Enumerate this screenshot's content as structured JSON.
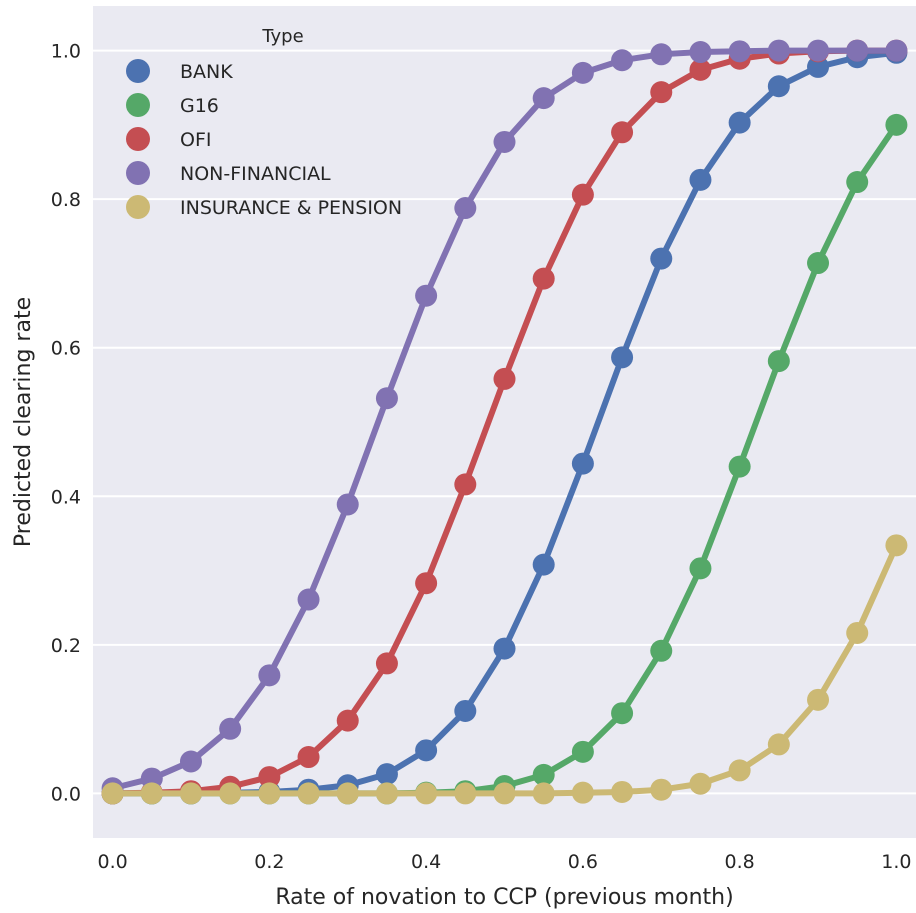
{
  "chart_data": {
    "type": "line",
    "xlabel": "Rate of novation to CCP (previous month)",
    "ylabel": "Predicted clearing rate",
    "xlim": [
      -0.025,
      1.025
    ],
    "ylim": [
      -0.06,
      1.06
    ],
    "x_ticks": [
      0.0,
      0.2,
      0.4,
      0.6,
      0.8,
      1.0
    ],
    "x_tick_labels": [
      "0.0",
      "0.2",
      "0.4",
      "0.6",
      "0.8",
      "1.0"
    ],
    "y_ticks": [
      0.0,
      0.2,
      0.4,
      0.6,
      0.8,
      1.0
    ],
    "y_tick_labels": [
      "0.0",
      "0.2",
      "0.4",
      "0.6",
      "0.8",
      "1.0"
    ],
    "grid": true,
    "background": "#eaeaf2",
    "legend": {
      "title": "Type",
      "placement": "top-left"
    },
    "x": [
      0.0,
      0.05,
      0.1,
      0.15,
      0.2,
      0.25,
      0.3,
      0.35,
      0.4,
      0.45,
      0.5,
      0.55,
      0.6,
      0.65,
      0.7,
      0.75,
      0.8,
      0.85,
      0.9,
      0.95,
      1.0
    ],
    "series": [
      {
        "name": "BANK",
        "color": "#4c72b0",
        "values": [
          0.0,
          0.0,
          0.0,
          0.001,
          0.002,
          0.005,
          0.011,
          0.026,
          0.058,
          0.111,
          0.195,
          0.308,
          0.444,
          0.587,
          0.72,
          0.826,
          0.903,
          0.952,
          0.978,
          0.991,
          0.997
        ]
      },
      {
        "name": "G16",
        "color": "#55a868",
        "values": [
          0.0,
          0.0,
          0.0,
          0.0,
          0.0,
          0.0,
          0.0,
          0.0,
          0.001,
          0.003,
          0.01,
          0.025,
          0.056,
          0.108,
          0.192,
          0.303,
          0.44,
          0.582,
          0.714,
          0.823,
          0.9
        ]
      },
      {
        "name": "OFI",
        "color": "#c44e52",
        "values": [
          0.0,
          0.001,
          0.003,
          0.009,
          0.022,
          0.049,
          0.098,
          0.175,
          0.283,
          0.416,
          0.558,
          0.693,
          0.806,
          0.89,
          0.944,
          0.974,
          0.989,
          0.996,
          0.999,
          1.0,
          1.0
        ]
      },
      {
        "name": "NON-FINANCIAL",
        "color": "#8172b2",
        "values": [
          0.007,
          0.02,
          0.043,
          0.087,
          0.159,
          0.261,
          0.389,
          0.532,
          0.67,
          0.788,
          0.877,
          0.936,
          0.97,
          0.987,
          0.995,
          0.998,
          0.999,
          1.0,
          1.0,
          1.0,
          1.0
        ]
      },
      {
        "name": "INSURANCE & PENSION",
        "color": "#ccb974",
        "values": [
          0.0,
          0.0,
          0.0,
          0.0,
          0.0,
          0.0,
          0.0,
          0.0,
          0.0,
          0.0,
          0.0,
          0.0,
          0.001,
          0.002,
          0.005,
          0.013,
          0.031,
          0.066,
          0.126,
          0.216,
          0.334
        ]
      }
    ]
  }
}
